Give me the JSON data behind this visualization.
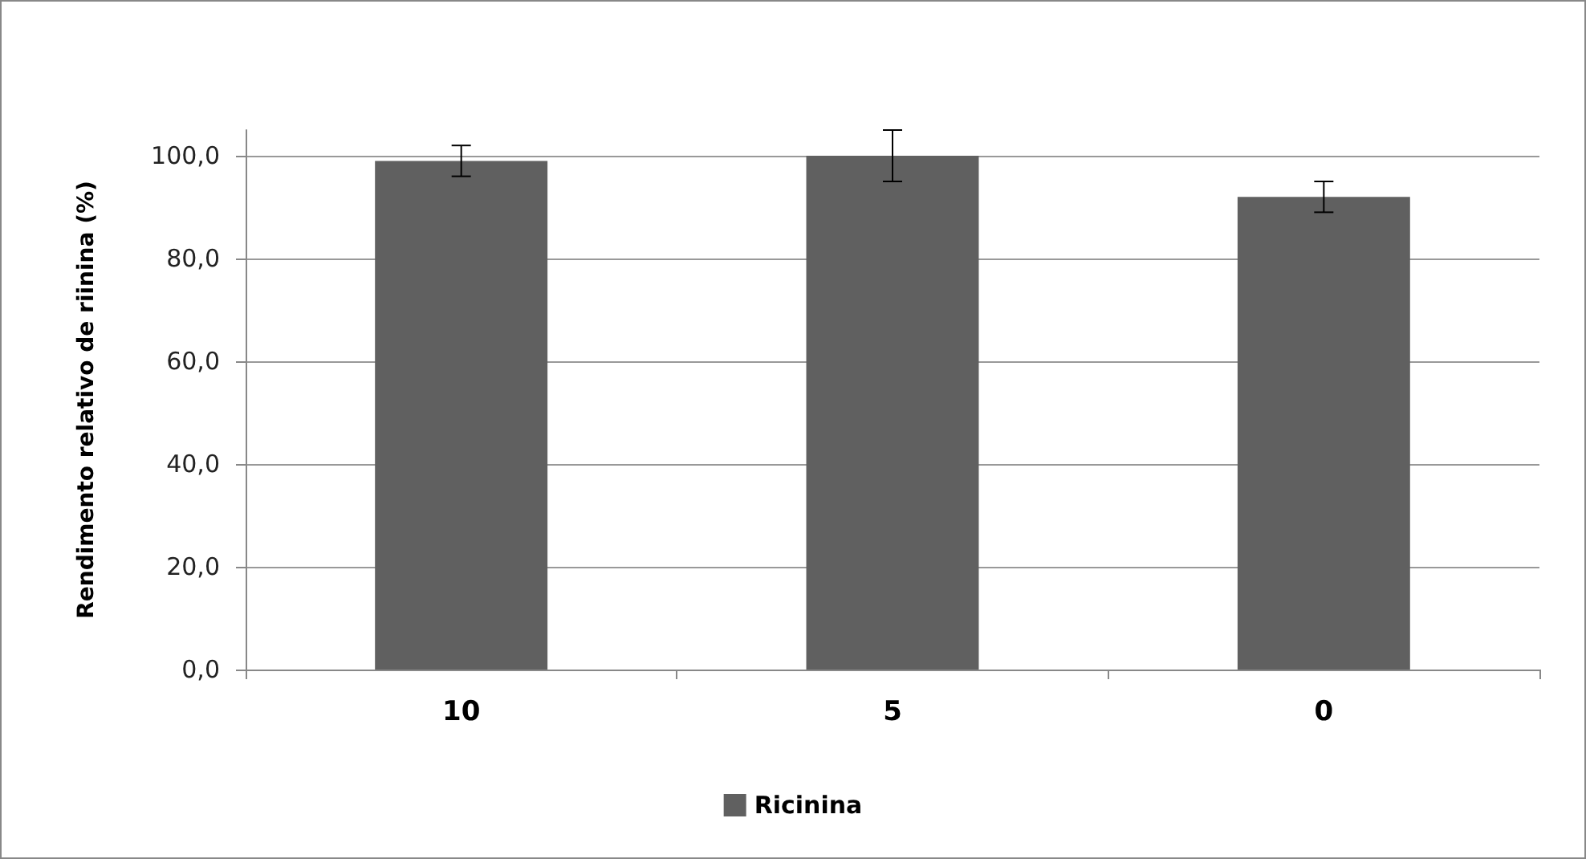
{
  "chart_data": {
    "type": "bar",
    "ylabel": "Rendimento relativo de riinina (%)",
    "categories": [
      "10",
      "5",
      "0"
    ],
    "series": [
      {
        "name": "Ricinina",
        "color": "#606060",
        "values": [
          99,
          100,
          92
        ],
        "errors": [
          [
            96,
            102
          ],
          [
            95,
            105
          ],
          [
            89,
            95
          ]
        ]
      }
    ],
    "ylim": [
      0,
      105
    ],
    "yticks": [
      {
        "value": 0,
        "label": "0,0"
      },
      {
        "value": 20,
        "label": "20,0"
      },
      {
        "value": 40,
        "label": "40,0"
      },
      {
        "value": 60,
        "label": "60,0"
      },
      {
        "value": 80,
        "label": "80,0"
      },
      {
        "value": 100,
        "label": "100,0"
      }
    ],
    "grid": "y",
    "legend": "bottom"
  }
}
